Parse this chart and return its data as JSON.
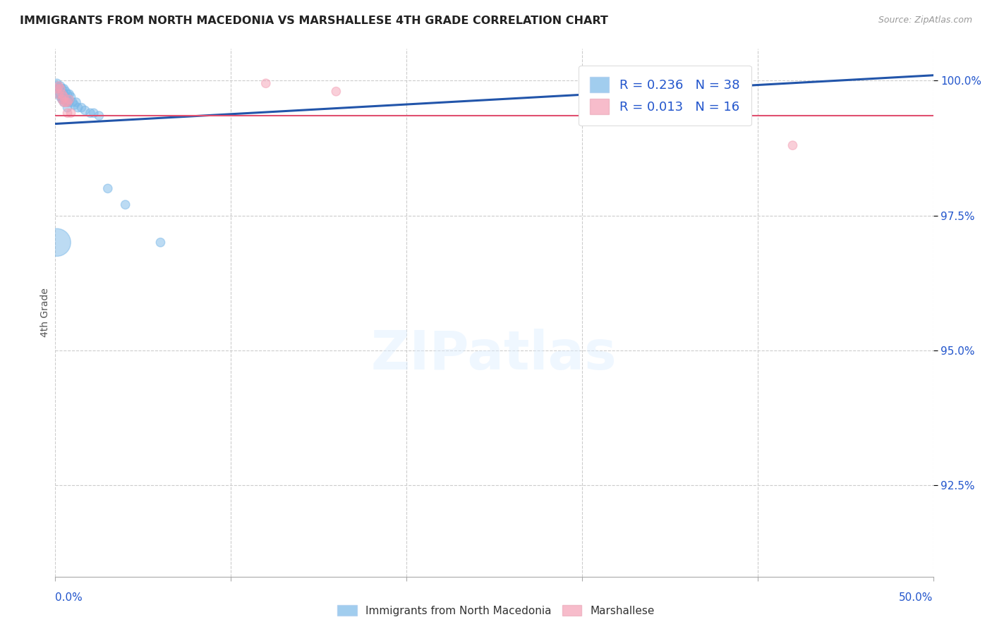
{
  "title": "IMMIGRANTS FROM NORTH MACEDONIA VS MARSHALLESE 4TH GRADE CORRELATION CHART",
  "source": "Source: ZipAtlas.com",
  "ylabel": "4th Grade",
  "ytick_values": [
    0.925,
    0.95,
    0.975,
    1.0
  ],
  "xmin": 0.0,
  "xmax": 0.5,
  "ymin": 0.908,
  "ymax": 1.006,
  "legend_blue_R": "R = 0.236",
  "legend_blue_N": "N = 38",
  "legend_pink_R": "R = 0.013",
  "legend_pink_N": "N = 16",
  "legend_blue_label": "Immigrants from North Macedonia",
  "legend_pink_label": "Marshallese",
  "blue_color": "#7ab8e8",
  "pink_color": "#f4a0b5",
  "blue_line_color": "#2255aa",
  "pink_line_color": "#e05070",
  "blue_scatter_x": [
    0.001,
    0.001,
    0.002,
    0.002,
    0.002,
    0.003,
    0.003,
    0.003,
    0.003,
    0.004,
    0.004,
    0.004,
    0.005,
    0.005,
    0.005,
    0.005,
    0.006,
    0.006,
    0.006,
    0.007,
    0.007,
    0.007,
    0.008,
    0.008,
    0.009,
    0.01,
    0.011,
    0.012,
    0.013,
    0.015,
    0.017,
    0.02,
    0.022,
    0.025,
    0.03,
    0.04,
    0.06,
    0.001
  ],
  "blue_scatter_y": [
    0.9995,
    0.999,
    0.9985,
    0.9985,
    0.9975,
    0.999,
    0.9985,
    0.9975,
    0.997,
    0.9985,
    0.997,
    0.9965,
    0.9985,
    0.9975,
    0.9965,
    0.996,
    0.998,
    0.997,
    0.9965,
    0.9975,
    0.996,
    0.995,
    0.9975,
    0.996,
    0.997,
    0.996,
    0.9955,
    0.996,
    0.995,
    0.995,
    0.9945,
    0.994,
    0.994,
    0.9935,
    0.98,
    0.977,
    0.97,
    0.97
  ],
  "blue_scatter_sizes": [
    80,
    80,
    80,
    80,
    80,
    80,
    80,
    80,
    80,
    80,
    80,
    80,
    80,
    80,
    80,
    80,
    80,
    80,
    80,
    80,
    80,
    80,
    80,
    80,
    80,
    80,
    80,
    80,
    80,
    80,
    80,
    80,
    80,
    80,
    80,
    80,
    80,
    800
  ],
  "pink_scatter_x": [
    0.001,
    0.002,
    0.002,
    0.003,
    0.004,
    0.004,
    0.005,
    0.005,
    0.006,
    0.007,
    0.007,
    0.008,
    0.009,
    0.12,
    0.16,
    0.42
  ],
  "pink_scatter_y": [
    0.9985,
    0.999,
    0.9975,
    0.9985,
    0.9975,
    0.9965,
    0.997,
    0.996,
    0.996,
    0.996,
    0.994,
    0.9965,
    0.994,
    0.9995,
    0.998,
    0.988
  ],
  "pink_scatter_sizes": [
    80,
    80,
    80,
    80,
    80,
    80,
    80,
    80,
    80,
    80,
    80,
    80,
    80,
    80,
    80,
    80
  ],
  "blue_trend_x0": 0.0,
  "blue_trend_x1": 0.5,
  "blue_trend_y0": 0.992,
  "blue_trend_y1": 1.001,
  "pink_trend_y": 0.9935,
  "grid_color": "#cccccc",
  "title_color": "#222222",
  "axis_color": "#2255cc",
  "source_color": "#999999"
}
